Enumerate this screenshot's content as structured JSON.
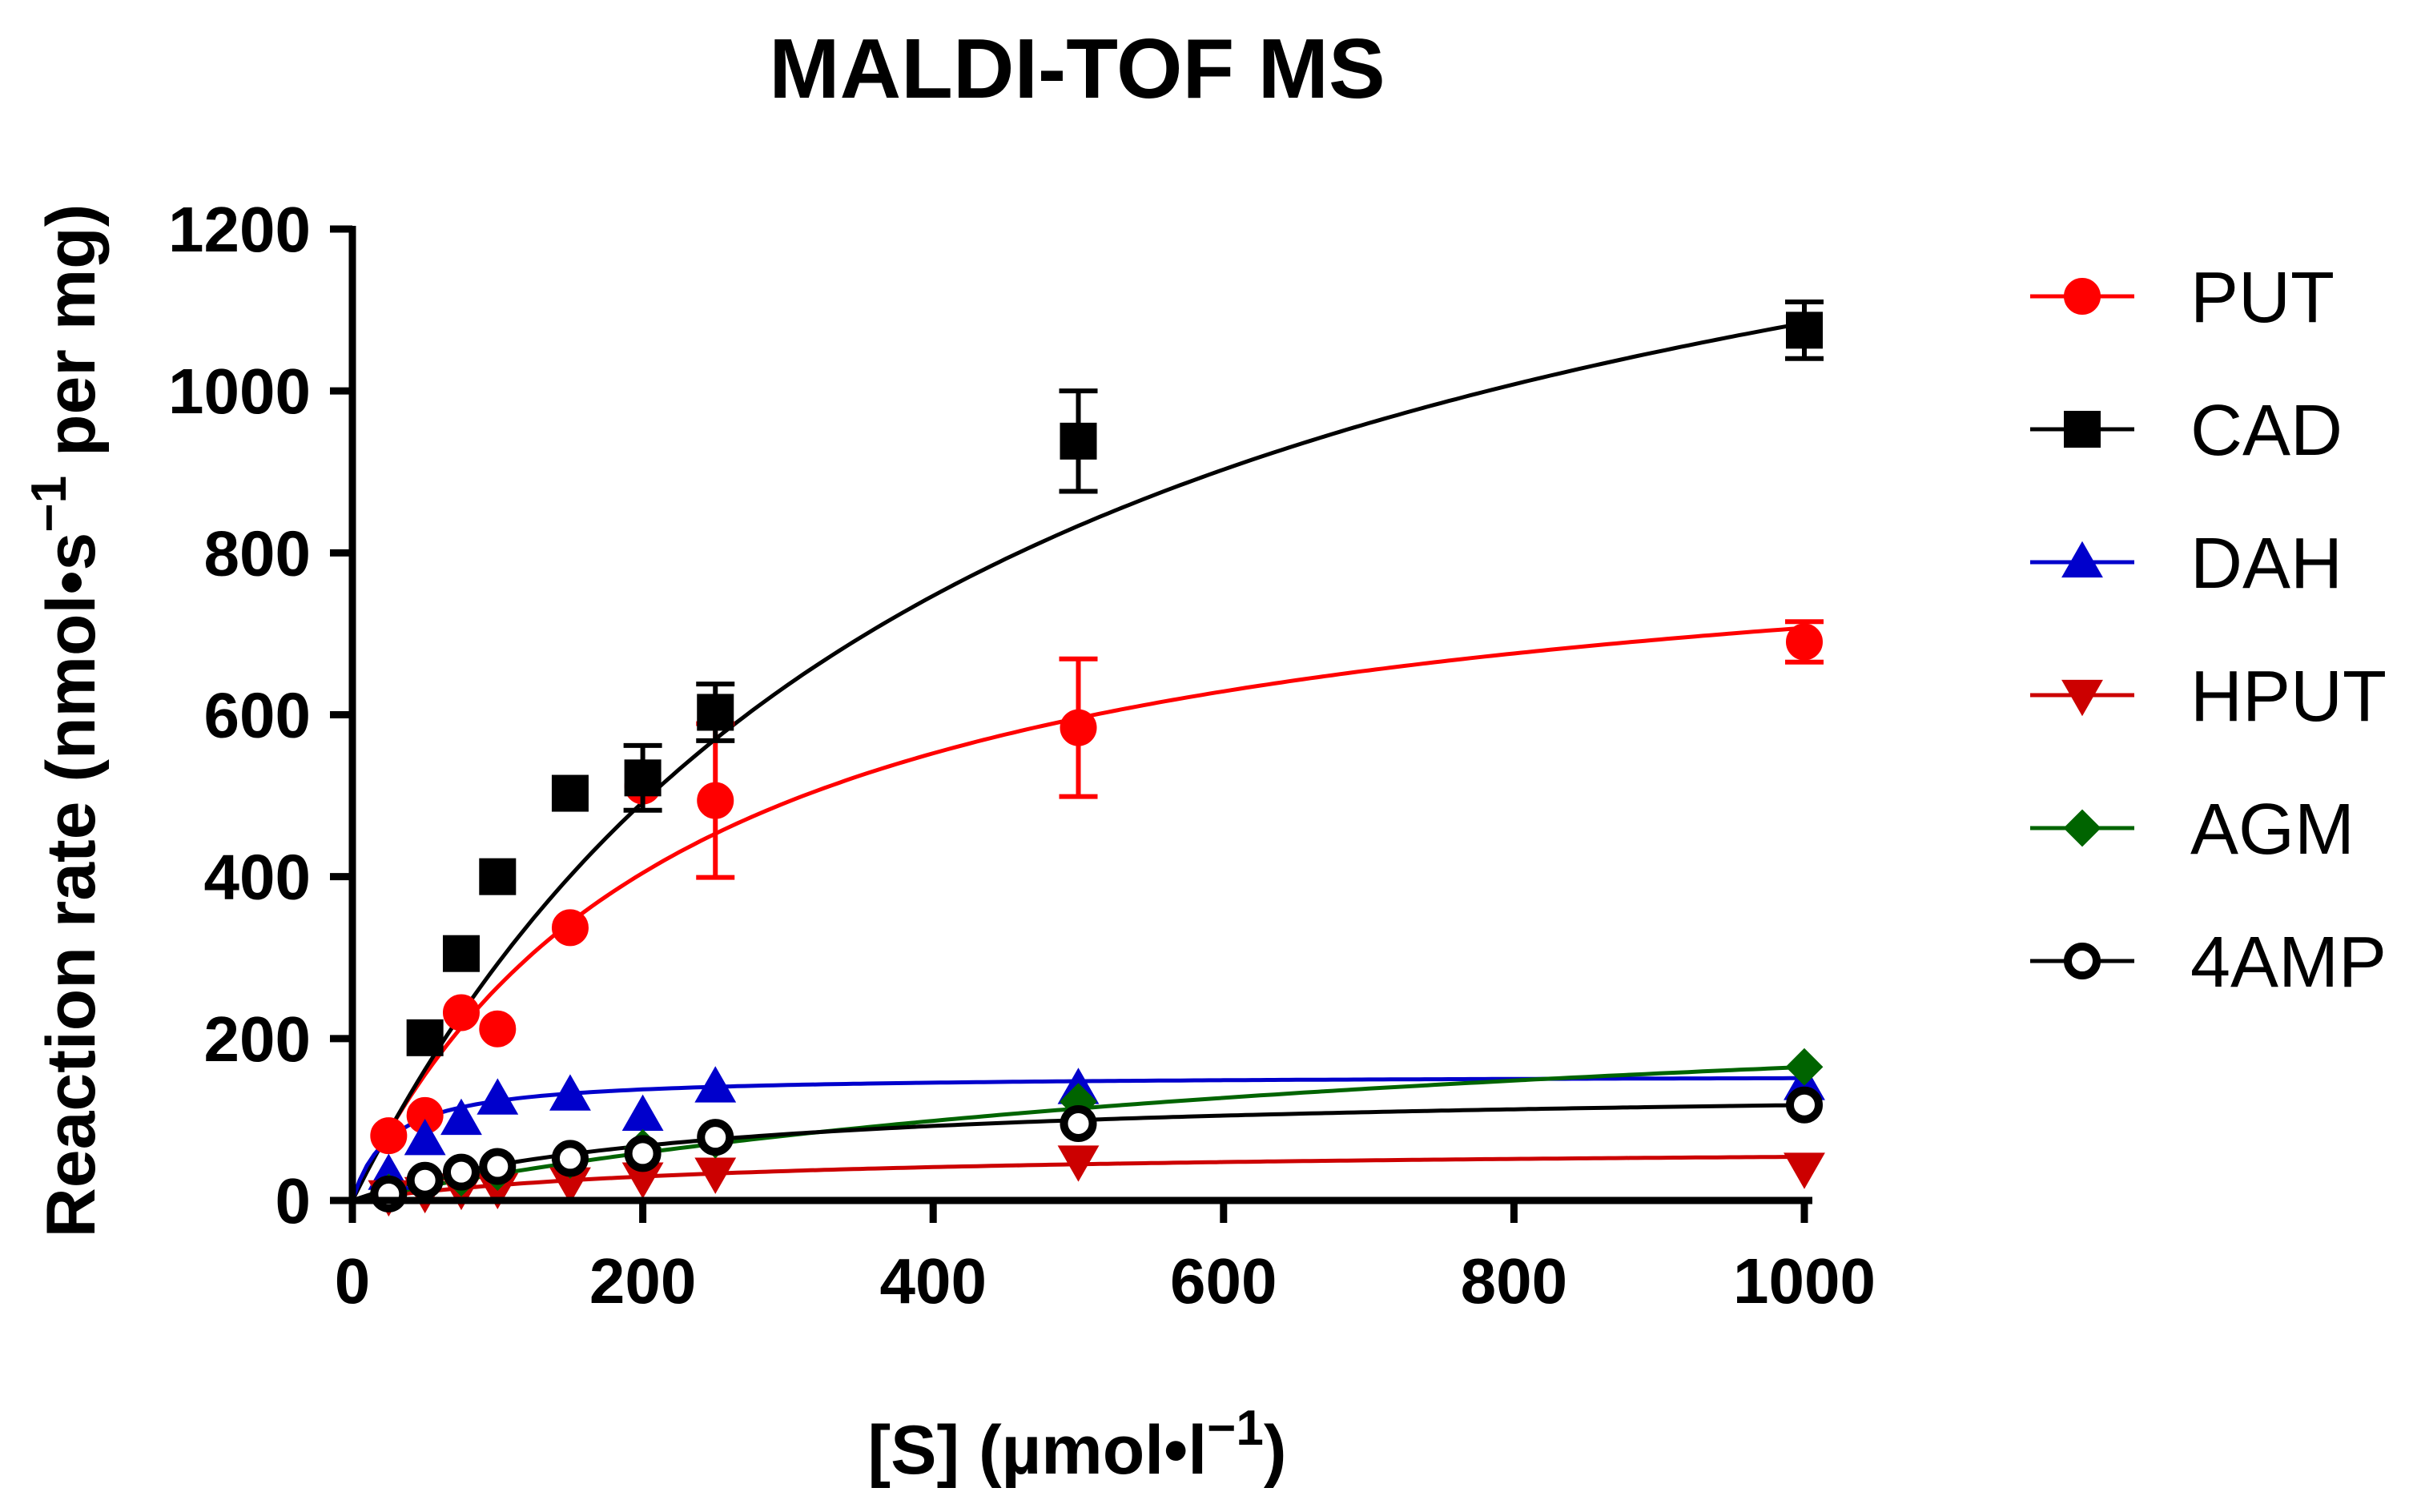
{
  "chart_data": {
    "type": "scatter",
    "title": "MALDI-TOF MS",
    "xlabel": {
      "main": "[S] (µmol•l",
      "sup": "−1",
      "close": ")"
    },
    "ylabel": {
      "main": "Reaction rate (nmol•s",
      "sup": "−1",
      "rest": " per mg)"
    },
    "xlim": [
      0,
      1000
    ],
    "ylim": [
      0,
      1200
    ],
    "xticks": [
      0,
      200,
      400,
      600,
      800,
      1000
    ],
    "yticks": [
      0,
      200,
      400,
      600,
      800,
      1000,
      1200
    ],
    "xtick_labels": [
      "0",
      "200",
      "400",
      "600",
      "800",
      "1000"
    ],
    "ytick_labels": [
      "0",
      "200",
      "400",
      "600",
      "800",
      "1000",
      "1200"
    ],
    "legend_position": "right",
    "x": [
      25,
      50,
      75,
      100,
      150,
      200,
      250,
      500,
      1000
    ],
    "series": [
      {
        "name": "PUT",
        "color": "#ff0000",
        "marker": "circle",
        "filled": true,
        "values": [
          80,
          105,
          232,
          212,
          337,
          512,
          494,
          584,
          690
        ],
        "errors": [
          0,
          0,
          0,
          0,
          0,
          0,
          95,
          85,
          25
        ],
        "fit": {
          "vmax": 870,
          "km": 230
        }
      },
      {
        "name": "CAD",
        "color": "#000000",
        "marker": "square",
        "filled": true,
        "values": [
          null,
          201,
          305,
          400,
          503,
          522,
          603,
          938,
          1075
        ],
        "errors": [
          0,
          0,
          0,
          0,
          0,
          40,
          35,
          62,
          35
        ],
        "fit": {
          "vmax": 1550,
          "km": 430
        }
      },
      {
        "name": "DAH",
        "color": "#0000cc",
        "marker": "triangle-up",
        "filled": true,
        "values": [
          32,
          75,
          100,
          125,
          130,
          105,
          140,
          138,
          143
        ],
        "errors": [
          0,
          0,
          0,
          0,
          0,
          0,
          0,
          0,
          0
        ],
        "fit": {
          "vmax": 155,
          "km": 26
        }
      },
      {
        "name": "HPUT",
        "color": "#cc0000",
        "marker": "triangle-down",
        "filled": true,
        "values": [
          6,
          10,
          14,
          15,
          22,
          28,
          34,
          49,
          40
        ],
        "errors": [
          0,
          0,
          0,
          0,
          0,
          0,
          0,
          0,
          0
        ],
        "fit": {
          "vmax": 68,
          "km": 260
        }
      },
      {
        "name": "AGM",
        "color": "#006400",
        "marker": "diamond",
        "filled": true,
        "values": [
          10,
          20,
          28,
          35,
          50,
          65,
          75,
          122,
          165
        ],
        "errors": [
          0,
          0,
          0,
          0,
          0,
          0,
          0,
          0,
          0
        ],
        "fit": {
          "vmax": 300,
          "km": 820
        }
      },
      {
        "name": "4AMP",
        "color": "#000000",
        "marker": "circle",
        "filled": false,
        "values": [
          8,
          25,
          35,
          42,
          52,
          58,
          78,
          95,
          118
        ],
        "errors": [
          0,
          0,
          0,
          0,
          0,
          0,
          0,
          0,
          0
        ],
        "fit": {
          "vmax": 145,
          "km": 230
        }
      }
    ]
  }
}
